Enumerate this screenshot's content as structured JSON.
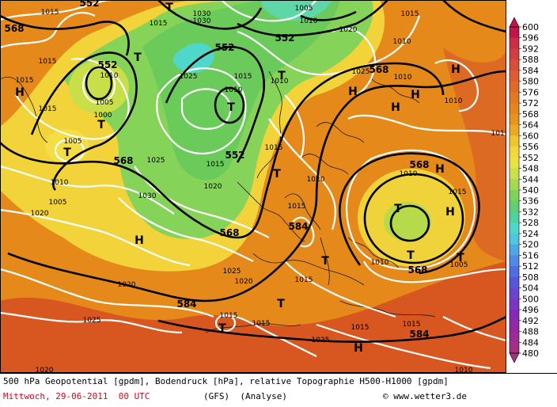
{
  "map": {
    "colors": {
      "ocean_high": "#e58a1a",
      "land_south": "#d8561f",
      "yellow": "#f6e34a",
      "green": "#7fd35a",
      "cyan": "#4fd8c9"
    },
    "pressure_labels": [
      "1015",
      "1030",
      "1030",
      "1015",
      "1005",
      "1010",
      "1020",
      "1015",
      "1005",
      "1010",
      "1025",
      "1010",
      "1000",
      "1015",
      "1005",
      "1010",
      "1025",
      "1015",
      "1010",
      "1015",
      "1020",
      "1025",
      "1010",
      "1015",
      "1005",
      "1015",
      "1010",
      "1020",
      "1015",
      "1020",
      "1025",
      "1030",
      "1015",
      "1020",
      "1025",
      "1015",
      "1015",
      "1025",
      "1015",
      "1010",
      "1015",
      "1015",
      "1015",
      "1010",
      "1010",
      "1010",
      "1005",
      "1020",
      "1020",
      "1015"
    ],
    "geo_labels": [
      "568",
      "552",
      "552",
      "552",
      "552",
      "568",
      "568",
      "568",
      "584",
      "568",
      "568",
      "584",
      "584"
    ],
    "low_marks": [
      "T",
      "T",
      "T",
      "T",
      "T",
      "T",
      "T",
      "T",
      "T",
      "T",
      "T",
      "T"
    ],
    "high_marks": [
      "H",
      "H",
      "H",
      "H",
      "H",
      "H",
      "H",
      "H",
      "H",
      "H"
    ]
  },
  "legend": {
    "values": [
      "600",
      "596",
      "592",
      "588",
      "584",
      "580",
      "576",
      "572",
      "568",
      "564",
      "560",
      "556",
      "552",
      "548",
      "544",
      "540",
      "536",
      "532",
      "528",
      "524",
      "520",
      "516",
      "512",
      "508",
      "504",
      "500",
      "496",
      "492",
      "488",
      "484",
      "480"
    ],
    "colors": [
      "#c4154a",
      "#c92e45",
      "#d23f3f",
      "#d84e38",
      "#dd5c31",
      "#e06a2a",
      "#e37823",
      "#e5851f",
      "#e8931c",
      "#ebaa22",
      "#f0c530",
      "#f4d83b",
      "#ebe242",
      "#c9e04a",
      "#a5d955",
      "#7fd35a",
      "#60d072",
      "#4fd2a0",
      "#4fd8c9",
      "#4fc7e0",
      "#4fa8e6",
      "#4f8ae4",
      "#4f6ee0",
      "#5856d8",
      "#6a45cf",
      "#7a36c3",
      "#8729b6",
      "#922aa6",
      "#9a2c95",
      "#a02f85",
      "#a63277"
    ]
  },
  "footer": {
    "line1": "500 hPa Geopotential [gpdm], Bodendruck [hPa], relative Topographie H500-H1000 [gpdm]",
    "date": "Mittwoch, 29-06-2011  00 UTC",
    "model": "(GFS)  (Analyse)",
    "copyright": "© www.wetter3.de"
  }
}
